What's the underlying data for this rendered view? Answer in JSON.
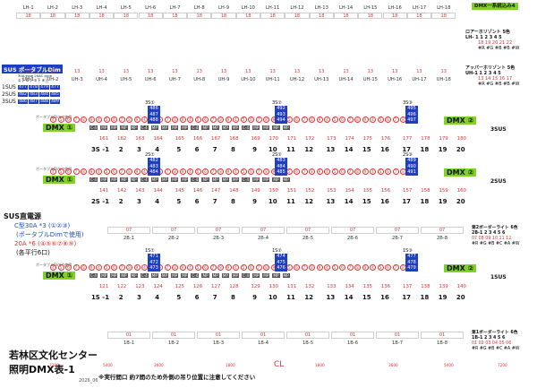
{
  "lh_row": {
    "labels": [
      "LH-1",
      "LH-2",
      "LH-3",
      "LH-4",
      "LH-5",
      "LH-6",
      "LH-7",
      "LH-8",
      "LH-9",
      "LH-10",
      "LH-11",
      "LH-12",
      "LH-13",
      "LH-14",
      "LH-15",
      "LH-16",
      "LH-17",
      "LH-18"
    ],
    "value": "18"
  },
  "dmx_pill_top": "DMX一系統込み4",
  "lower_horizont": {
    "title": "ロアーホリゾント 5色",
    "lh1": "LH- 1",
    "nums": "1 2 3 4 5",
    "vals": "18 19 20 21 22",
    "colors": "#R #G #B #B #W"
  },
  "uh_row": {
    "labels": [
      "UH-1",
      "UH-2",
      "UH-3",
      "UH-4",
      "UH-5",
      "UH-6",
      "UH-7",
      "UH-8",
      "UH-9",
      "UH-10",
      "UH-11",
      "UH-12",
      "UH-13",
      "UH-14",
      "UH-15",
      "UH-16",
      "UH-17",
      "UH-18"
    ],
    "value": "13"
  },
  "upper_horizont": {
    "title": "アッパーホリゾント 5色",
    "uh1": "UH-1",
    "nums": "1 2 3 4 5",
    "vals": "13 14 15 16 17",
    "colors": "#R #G #B #B #W"
  },
  "sus_dim": {
    "title": "SUS ポータブルDim",
    "sub": "30A type 20AC type",
    "cols": "①下 ②下 ③下 ④上",
    "rows": [
      {
        "name": "1SUS",
        "vals": [
          "477",
          "478",
          "479",
          "477"
        ]
      },
      {
        "name": "2SUS",
        "vals": [
          "482",
          "483",
          "484",
          "485"
        ]
      },
      {
        "name": "3SUS",
        "vals": [
          "486",
          "487",
          "488",
          "489"
        ]
      }
    ]
  },
  "sus3": {
    "label": "3SUS",
    "pill_left": "DMX ①",
    "pill_right": "DMX ②",
    "note": "ポータブルDimで使用",
    "dmx_left": "3S①",
    "dmx_mid": "3S②",
    "dmx_right": "3S③",
    "box_left": [
      "486",
      "487",
      "488"
    ],
    "box_mid": [
      "492",
      "493",
      "494"
    ],
    "box_right": [
      "495",
      "496",
      "497"
    ],
    "vals": [
      "161",
      "162",
      "163",
      "164",
      "165",
      "166",
      "167",
      "168",
      "169",
      "170",
      "171",
      "172",
      "173",
      "174",
      "175",
      "176",
      "177",
      "178",
      "179",
      "180"
    ],
    "nums": [
      "3S -1",
      "2",
      "3",
      "4",
      "5",
      "6",
      "7",
      "8",
      "9",
      "10",
      "11",
      "12",
      "13",
      "14",
      "15",
      "16",
      "17",
      "18",
      "19",
      "20"
    ]
  },
  "sus2": {
    "label": "2SUS",
    "pill_left": "DMX ①",
    "pill_right": "DMX ②",
    "note": "ポータブルDimで使用",
    "dmx_left": "2S①",
    "dmx_mid": "2S②",
    "dmx_right": "2S③",
    "box_left": [
      "482",
      "483",
      "484"
    ],
    "box_mid": [
      "483",
      "484",
      "485"
    ],
    "box_right": [
      "489",
      "490",
      "491"
    ],
    "vals": [
      "141",
      "142",
      "143",
      "144",
      "145",
      "146",
      "147",
      "148",
      "149",
      "150",
      "151",
      "152",
      "153",
      "154",
      "155",
      "156",
      "157",
      "158",
      "159",
      "160"
    ],
    "nums": [
      "2S -1",
      "2",
      "3",
      "4",
      "5",
      "6",
      "7",
      "8",
      "9",
      "10",
      "11",
      "12",
      "13",
      "14",
      "15",
      "16",
      "17",
      "18",
      "19",
      "20"
    ]
  },
  "sus_power": {
    "title": "SUS直電源",
    "c_type": "C型30A *3 (①②③)",
    "portable": "(ポータブルDimで使用)",
    "a20": "20A *6 (④⑤⑥⑦⑧⑨)",
    "each": "(各平行6口)"
  },
  "border2": {
    "title": "第2ボーダーライト 6色",
    "labels": [
      "2B-1",
      "2B-2",
      "2B-3",
      "2B-4",
      "2B-5",
      "2B-6",
      "2B-7",
      "2B-8"
    ],
    "value": "07",
    "legend_head": "2B-1 2 3 4 5 6",
    "legend_vals": "07 08 09 10 11 12",
    "legend_colors": "#R #G #B #C #A #W"
  },
  "sus1": {
    "label": "1SUS",
    "pill_left": "DMX ①",
    "pill_right": "DMX ②",
    "note": "ポータブルDimで使用",
    "dmx_left": "1S①",
    "dmx_mid": "1S②",
    "dmx_right": "1S③",
    "box_left": [
      "471",
      "472",
      "473"
    ],
    "box_mid": [
      "474",
      "475",
      "476"
    ],
    "box_right": [
      "477",
      "478",
      "479"
    ],
    "vals": [
      "121",
      "122",
      "123",
      "124",
      "125",
      "126",
      "127",
      "128",
      "129",
      "130",
      "131",
      "132",
      "133",
      "134",
      "135",
      "136",
      "137",
      "138",
      "139",
      "140"
    ],
    "nums": [
      "1S -1",
      "2",
      "3",
      "4",
      "5",
      "6",
      "7",
      "8",
      "9",
      "10",
      "11",
      "12",
      "13",
      "14",
      "15",
      "16",
      "17",
      "18",
      "19",
      "20"
    ]
  },
  "border1": {
    "title": "第1ボーダーライト 6色",
    "labels": [
      "1B-1",
      "1B-2",
      "1B-3",
      "1B-4",
      "1B-5",
      "1B-6",
      "1B-7",
      "1B-8"
    ],
    "value": "01",
    "legend_head": "1B-1 2 3 4 5 6",
    "legend_vals": "01 02 03 04 05 06",
    "legend_colors": "#R #G #B #C #A #W"
  },
  "venue": "若林区文化センター",
  "doc_title": "照明DMX表-1",
  "date": "2026_06",
  "note": "※実行間口 約7間のため外側の吊り位置に注意してください",
  "cl": "CL",
  "scale": [
    "7200",
    "5400",
    "3600",
    "1800",
    "1800",
    "3600",
    "5400",
    "7200"
  ]
}
